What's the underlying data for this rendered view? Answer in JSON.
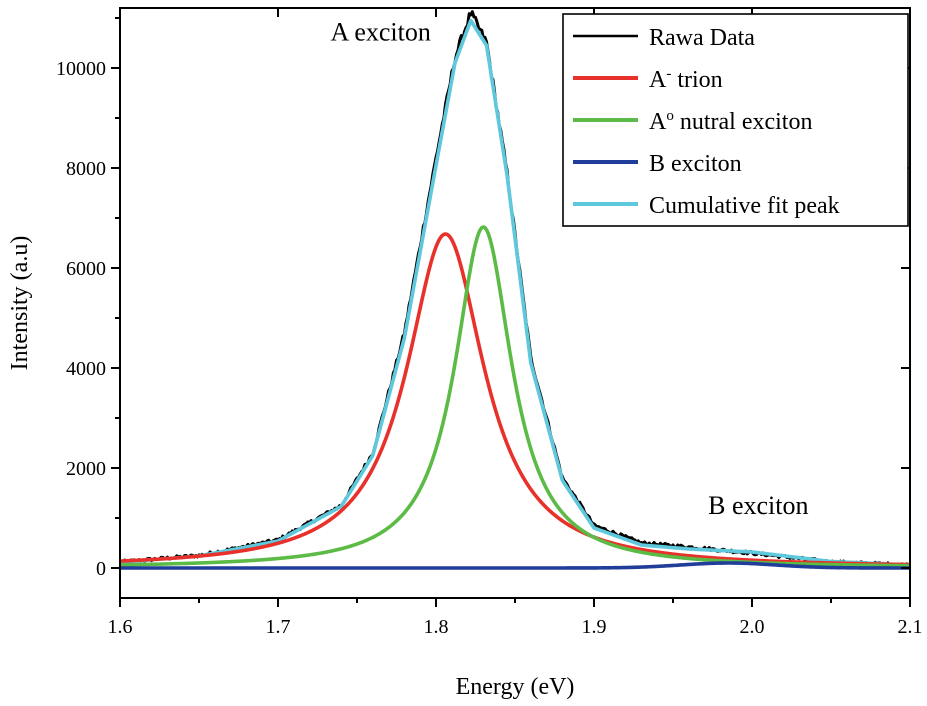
{
  "chart_data": {
    "type": "line",
    "xlabel": "Energy (eV)",
    "ylabel": "Intensity (a.u)",
    "xlim": [
      1.6,
      2.1
    ],
    "ylim": [
      -600,
      11200
    ],
    "x_ticks": [
      1.6,
      1.7,
      1.8,
      1.9,
      2.0,
      2.1
    ],
    "x_tick_labels": [
      "1.6",
      "1.7",
      "1.8",
      "1.9",
      "2.0",
      "2.1"
    ],
    "y_ticks": [
      0,
      2000,
      4000,
      6000,
      8000,
      10000
    ],
    "y_tick_labels": [
      "0",
      "2000",
      "4000",
      "6000",
      "8000",
      "10000"
    ],
    "legend_position": "top-right",
    "annotations": [
      {
        "text": "A exciton",
        "x": 1.765,
        "y": 10550
      },
      {
        "text": "B exciton",
        "x": 2.004,
        "y": 1080
      }
    ],
    "series": [
      {
        "name": "Rawa Data",
        "legend_main": "Rawa Data",
        "legend_sup": "",
        "legend_rest": "",
        "color": "#000000",
        "x": [
          1.6,
          1.65,
          1.7,
          1.74,
          1.76,
          1.78,
          1.8,
          1.812,
          1.822,
          1.832,
          1.845,
          1.86,
          1.88,
          1.9,
          1.93,
          1.96,
          2.0,
          2.05,
          2.1
        ],
        "values": [
          120,
          250,
          560,
          1250,
          2300,
          4700,
          8200,
          10200,
          11100,
          10500,
          7900,
          4200,
          1800,
          850,
          500,
          420,
          300,
          120,
          60
        ]
      },
      {
        "name": "A- trion",
        "legend_main": "A",
        "legend_sup": "-",
        "legend_rest": " trion",
        "color": "#e8312a",
        "center": 1.806,
        "amplitude": 6680,
        "hwhm": 0.03,
        "sample_x": [
          1.6,
          1.7,
          1.76,
          1.806,
          1.85,
          1.9,
          2.0,
          2.1
        ],
        "sample_values": [
          140,
          500,
          1990,
          6680,
          2140,
          630,
          160,
          70
        ]
      },
      {
        "name": "A0 nutral exciton",
        "legend_main": "A",
        "legend_sup": "o",
        "legend_rest": " nutral exciton",
        "color": "#5cbb46",
        "center": 1.83,
        "amplitude": 6820,
        "hwhm": 0.022,
        "sample_x": [
          1.6,
          1.7,
          1.78,
          1.83,
          1.88,
          1.95,
          2.05,
          2.1
        ],
        "sample_values": [
          60,
          190,
          1110,
          6820,
          1110,
          220,
          70,
          45
        ]
      },
      {
        "name": "B exciton",
        "legend_main": "B exciton",
        "legend_sup": "",
        "legend_rest": "",
        "color": "#1f3d99",
        "center": 1.985,
        "amplitude": 100,
        "sigma": 0.03,
        "sample_x": [
          1.6,
          1.9,
          1.95,
          1.985,
          2.02,
          2.1
        ],
        "sample_values": [
          0,
          2,
          51,
          100,
          51,
          0
        ]
      },
      {
        "name": "Cumulative fit peak",
        "legend_main": "Cumulative fit peak",
        "legend_sup": "",
        "legend_rest": "",
        "color": "#5ec8dc",
        "x": [
          1.6,
          1.65,
          1.7,
          1.74,
          1.76,
          1.78,
          1.8,
          1.812,
          1.822,
          1.832,
          1.845,
          1.86,
          1.88,
          1.9,
          1.93,
          1.96,
          2.0,
          2.05,
          2.1
        ],
        "values": [
          115,
          240,
          540,
          1230,
          2250,
          4600,
          8050,
          10100,
          10950,
          10450,
          7850,
          4100,
          1750,
          800,
          460,
          380,
          320,
          130,
          60
        ]
      }
    ]
  }
}
